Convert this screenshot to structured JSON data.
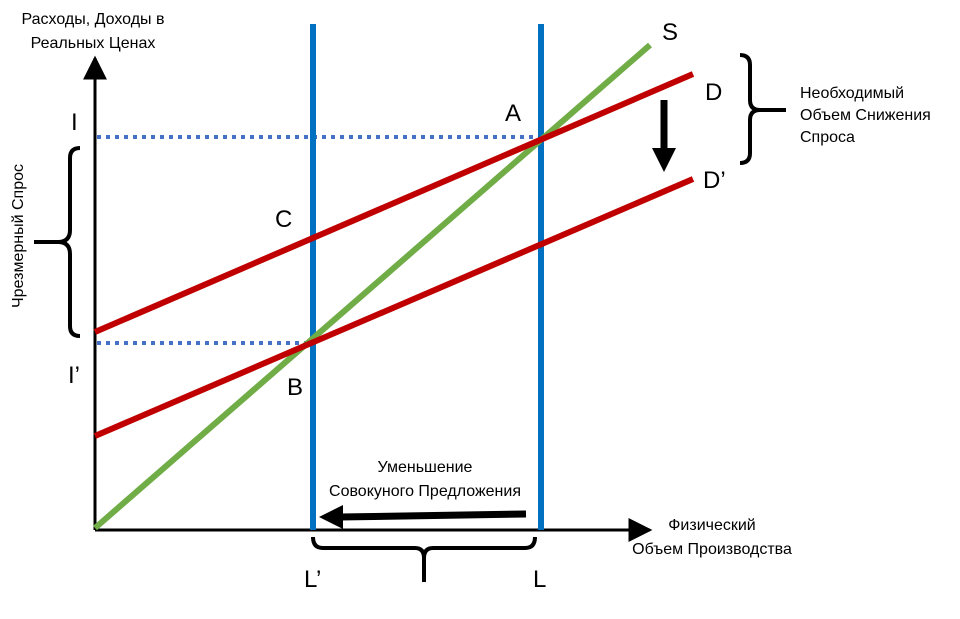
{
  "axes": {
    "y_label_lines": [
      "Расходы, Доходы в",
      "Реальных Ценах"
    ],
    "x_label_lines": [
      "Физический",
      "Объем Производства"
    ]
  },
  "points": {
    "A": "A",
    "B": "B",
    "C": "C",
    "I": "I",
    "I_prime": "I’",
    "L": "L",
    "L_prime": "L’"
  },
  "curves": {
    "S": "S",
    "D": "D",
    "D_prime": "D’"
  },
  "annotations": {
    "excess_demand": "Чрезмерный Спрос",
    "needed_reduction_lines": [
      "Необходимый",
      "Объем Снижения",
      "Спроса"
    ],
    "supply_decrease_lines": [
      "Уменьшение",
      "Совокуного Предложения"
    ]
  },
  "colors": {
    "supply_line": "#70ad47",
    "demand_lines": "#c00000",
    "capacity_lines": "#0070c0",
    "dotted_guides": "#4472c4",
    "axes": "#000000"
  }
}
